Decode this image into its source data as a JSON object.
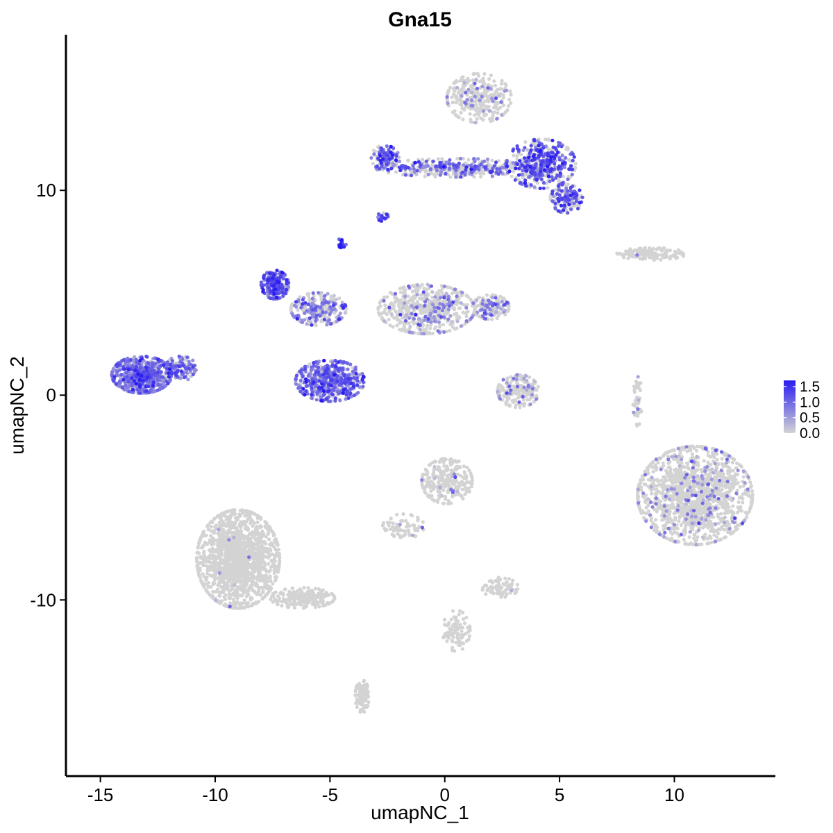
{
  "chart_data": {
    "type": "scatter",
    "title": "Gna15",
    "xlabel": "umapNC_1",
    "ylabel": "umapNC_2",
    "xlim": [
      -16.5,
      14.4
    ],
    "ylim": [
      -18.6,
      17.6
    ],
    "x_ticks": [
      -15,
      -10,
      -5,
      0,
      5,
      10
    ],
    "y_ticks": [
      -10,
      0,
      10
    ],
    "grid": false,
    "legend": {
      "placement": "right",
      "type": "continuous",
      "title": "",
      "breaks": [
        0.0,
        0.5,
        1.0,
        1.5
      ],
      "labels": [
        "0.0",
        "0.5",
        "1.0",
        "1.5"
      ],
      "range": [
        0.0,
        1.7
      ],
      "low_color": "#d3d3d3",
      "high_color": "#2a1cf0"
    },
    "point_color_low": "#d3d3d3",
    "point_color_high": "#2a1cf0",
    "clusters": [
      {
        "name": "top-right hub",
        "cx": 1.5,
        "cy": 14.5,
        "rx": 1.4,
        "ry": 1.2,
        "n": 320,
        "expr_frac": 0.12,
        "expr_mean": 0.6
      },
      {
        "name": "top-right band",
        "cx": 0.6,
        "cy": 11.1,
        "rx": 3.6,
        "ry": 0.45,
        "n": 380,
        "expr_frac": 0.4,
        "expr_mean": 0.9
      },
      {
        "name": "top-right left arm",
        "cx": -2.6,
        "cy": 11.6,
        "rx": 0.6,
        "ry": 0.6,
        "n": 120,
        "expr_frac": 0.65,
        "expr_mean": 1.0
      },
      {
        "name": "top-right lobe",
        "cx": 4.2,
        "cy": 11.3,
        "rx": 1.5,
        "ry": 1.2,
        "n": 420,
        "expr_frac": 0.6,
        "expr_mean": 1.1
      },
      {
        "name": "top-right bottom lobe",
        "cx": 5.3,
        "cy": 9.6,
        "rx": 0.7,
        "ry": 0.7,
        "n": 160,
        "expr_frac": 0.55,
        "expr_mean": 1.0
      },
      {
        "name": "small dot cluster",
        "cx": -2.7,
        "cy": 8.7,
        "rx": 0.25,
        "ry": 0.2,
        "n": 18,
        "expr_frac": 0.9,
        "expr_mean": 1.0
      },
      {
        "name": "tiny high cluster",
        "cx": -4.5,
        "cy": 7.4,
        "rx": 0.2,
        "ry": 0.25,
        "n": 20,
        "expr_frac": 0.95,
        "expr_mean": 1.4
      },
      {
        "name": "upper-mid left lobe",
        "cx": -7.4,
        "cy": 5.4,
        "rx": 0.6,
        "ry": 0.7,
        "n": 220,
        "expr_frac": 0.9,
        "expr_mean": 1.1
      },
      {
        "name": "upper-mid bridge",
        "cx": -5.5,
        "cy": 4.2,
        "rx": 1.2,
        "ry": 0.8,
        "n": 260,
        "expr_frac": 0.5,
        "expr_mean": 0.7
      },
      {
        "name": "upper-mid bottom lobe",
        "cx": -5.0,
        "cy": 0.7,
        "rx": 1.5,
        "ry": 1.0,
        "n": 560,
        "expr_frac": 0.75,
        "expr_mean": 0.9
      },
      {
        "name": "upper-mid right body",
        "cx": -0.8,
        "cy": 4.2,
        "rx": 2.1,
        "ry": 1.2,
        "n": 560,
        "expr_frac": 0.2,
        "expr_mean": 0.6
      },
      {
        "name": "upper-mid right tip",
        "cx": 2.0,
        "cy": 4.3,
        "rx": 0.8,
        "ry": 0.6,
        "n": 160,
        "expr_frac": 0.3,
        "expr_mean": 0.7
      },
      {
        "name": "left cluster",
        "cx": -13.2,
        "cy": 1.0,
        "rx": 1.3,
        "ry": 0.9,
        "n": 650,
        "expr_frac": 0.9,
        "expr_mean": 0.8
      },
      {
        "name": "left cluster tail",
        "cx": -11.5,
        "cy": 1.3,
        "rx": 0.7,
        "ry": 0.6,
        "n": 120,
        "expr_frac": 0.7,
        "expr_mean": 0.8
      },
      {
        "name": "right upper strip",
        "cx": 9.0,
        "cy": 6.9,
        "rx": 1.5,
        "ry": 0.3,
        "n": 130,
        "expr_frac": 0.01,
        "expr_mean": 0.4
      },
      {
        "name": "mid small cluster",
        "cx": 3.2,
        "cy": 0.2,
        "rx": 0.9,
        "ry": 0.8,
        "n": 200,
        "expr_frac": 0.12,
        "expr_mean": 0.6
      },
      {
        "name": "right thin strip",
        "cx": 8.4,
        "cy": -0.3,
        "rx": 0.2,
        "ry": 1.2,
        "n": 40,
        "expr_frac": 0.05,
        "expr_mean": 0.5
      },
      {
        "name": "large right cluster",
        "cx": 10.9,
        "cy": -4.9,
        "rx": 2.5,
        "ry": 2.4,
        "n": 1400,
        "expr_frac": 0.1,
        "expr_mean": 0.6
      },
      {
        "name": "lower-mid cluster",
        "cx": 0.1,
        "cy": -4.2,
        "rx": 1.1,
        "ry": 1.1,
        "n": 260,
        "expr_frac": 0.06,
        "expr_mean": 0.5
      },
      {
        "name": "lower-mid branch",
        "cx": -1.8,
        "cy": -6.4,
        "rx": 0.9,
        "ry": 0.6,
        "n": 70,
        "expr_frac": 0.05,
        "expr_mean": 0.5
      },
      {
        "name": "lower small cluster",
        "cx": 2.4,
        "cy": -9.4,
        "rx": 0.8,
        "ry": 0.5,
        "n": 80,
        "expr_frac": 0.03,
        "expr_mean": 0.5
      },
      {
        "name": "large left-bottom cluster",
        "cx": -9.0,
        "cy": -8.0,
        "rx": 1.8,
        "ry": 2.4,
        "n": 1500,
        "expr_frac": 0.005,
        "expr_mean": 0.5
      },
      {
        "name": "left-bottom tail",
        "cx": -6.2,
        "cy": -9.9,
        "rx": 1.4,
        "ry": 0.5,
        "n": 220,
        "expr_frac": 0.01,
        "expr_mean": 0.5
      },
      {
        "name": "bottom strand",
        "cx": -3.6,
        "cy": -14.7,
        "rx": 0.3,
        "ry": 0.8,
        "n": 90,
        "expr_frac": 0.0,
        "expr_mean": 0.4
      },
      {
        "name": "lower branching strand",
        "cx": 0.5,
        "cy": -11.5,
        "rx": 0.6,
        "ry": 1.0,
        "n": 90,
        "expr_frac": 0.0,
        "expr_mean": 0.4
      }
    ]
  }
}
